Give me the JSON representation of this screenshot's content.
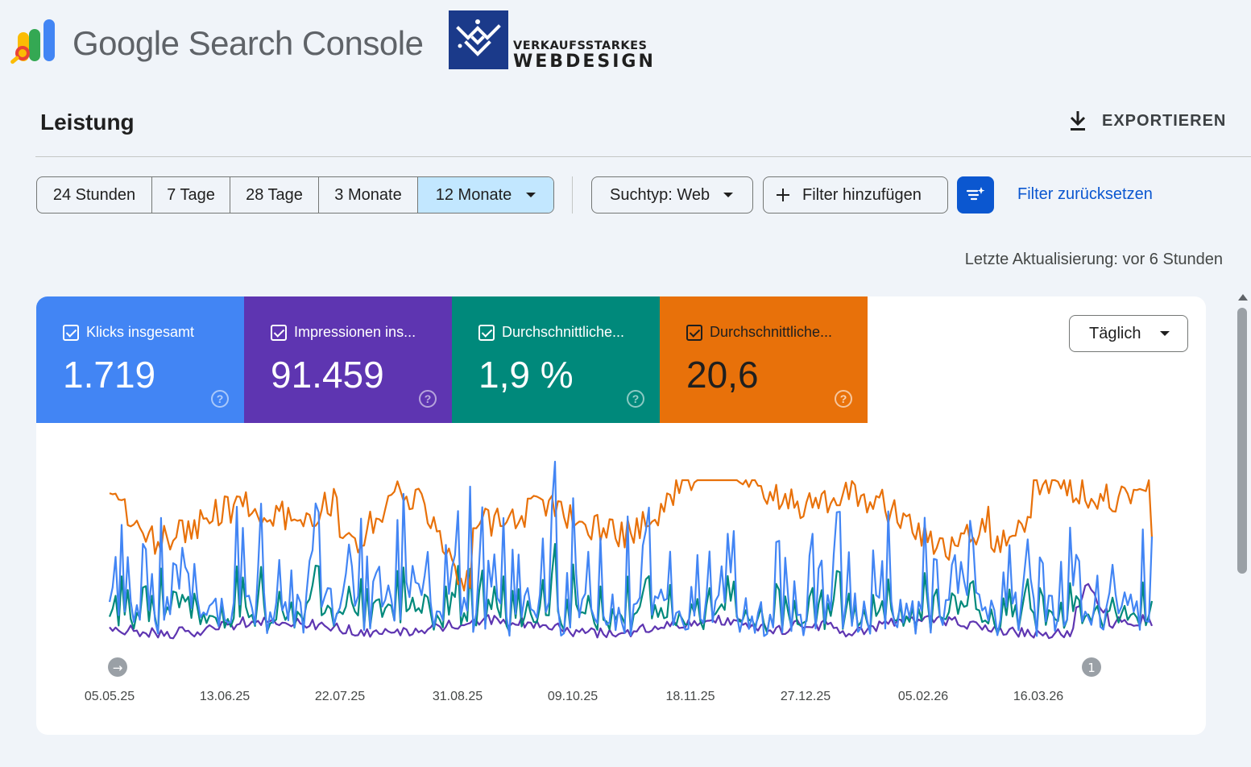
{
  "brand": {
    "product_prefix": "Google",
    "product_suffix": "Search Console",
    "agency_line1": "VERKAUFSSTARKES",
    "agency_line2": "WEBDESIGN"
  },
  "header": {
    "title": "Leistung",
    "export_label": "EXPORTIEREN"
  },
  "filters": {
    "ranges": [
      "24 Stunden",
      "7 Tage",
      "28 Tage",
      "3 Monate",
      "12 Monate"
    ],
    "active_range": "12 Monate",
    "search_type": "Suchtyp: Web",
    "add_filter": "Filter hinzufügen",
    "reset": "Filter zurücksetzen"
  },
  "last_update": "Letzte Aktualisierung: vor 6 Stunden",
  "metrics": [
    {
      "label": "Klicks insgesamt",
      "value": "1.719",
      "color": "#4285f4",
      "checked": true
    },
    {
      "label": "Impressionen ins...",
      "value": "91.459",
      "color": "#5e35b1",
      "checked": true
    },
    {
      "label": "Durchschnittliche...",
      "value": "1,9 %",
      "color": "#00897b",
      "checked": true
    },
    {
      "label": "Durchschnittliche...",
      "value": "20,6",
      "color": "#e8710a",
      "checked": true
    }
  ],
  "granularity": "Täglich",
  "chart_data": {
    "type": "line",
    "x_tick_labels": [
      "05.05.25",
      "13.06.25",
      "22.07.25",
      "31.08.25",
      "09.10.25",
      "18.11.25",
      "27.12.25",
      "05.02.26",
      "16.03.26"
    ],
    "annotation_markers": [
      {
        "x": "05.05.25",
        "label": "→"
      },
      {
        "x": "10.04.26",
        "label": "1"
      }
    ],
    "series": [
      {
        "name": "Klicks insgesamt",
        "color": "#4285f4",
        "daily_min": 0,
        "daily_max": 30
      },
      {
        "name": "Impressionen ins...",
        "color": "#5e35b1"
      },
      {
        "name": "Durchschnittliche...",
        "color": "#00897b"
      },
      {
        "name": "Durchschnittliche...",
        "color": "#e8710a"
      }
    ],
    "grid": false,
    "legend": "metric cards above chart"
  }
}
